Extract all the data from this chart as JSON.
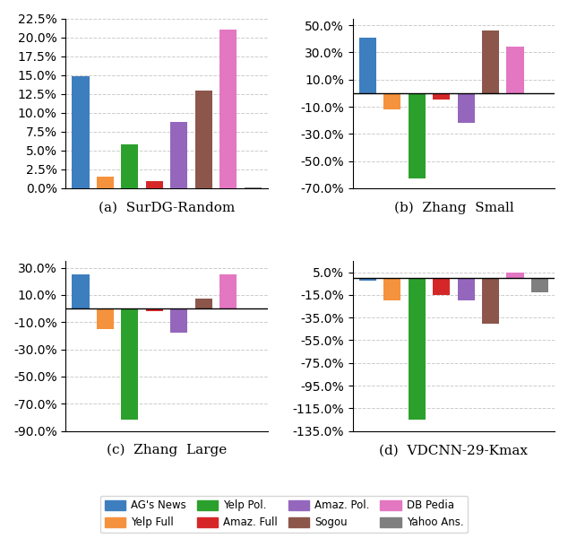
{
  "subplot_titles": [
    "(a)  SurDG-Random",
    "(b)  Zhang  Small",
    "(c)  Zhang  Large",
    "(d)  VDCNN-29-Kmax"
  ],
  "categories": [
    "AG's News",
    "Yelp Full",
    "Yelp Pol.",
    "Amaz. Full",
    "Amaz. Pol.",
    "Sogou",
    "DB Pedia",
    "Yahoo Ans."
  ],
  "colors": [
    "#3d7ebf",
    "#f5923e",
    "#2ca02c",
    "#d62728",
    "#9467bd",
    "#8c564b",
    "#e377c2",
    "#7f7f7f"
  ],
  "data": {
    "a": [
      14.8,
      1.5,
      5.8,
      0.9,
      8.8,
      13.0,
      21.0,
      0.1
    ],
    "b": [
      40.5,
      -12.0,
      -63.0,
      -5.0,
      -22.0,
      46.0,
      34.0,
      null
    ],
    "c": [
      25.0,
      -15.0,
      -82.0,
      -2.0,
      -18.0,
      7.0,
      25.0,
      null
    ],
    "d": [
      -2.0,
      -20.0,
      -125.0,
      -15.0,
      -20.0,
      -40.0,
      5.0,
      -13.0
    ]
  },
  "ylims": {
    "a": [
      0.0,
      22.5
    ],
    "b": [
      -70.0,
      55.0
    ],
    "c": [
      -90.0,
      35.0
    ],
    "d": [
      -135.0,
      15.0
    ]
  },
  "ytick_step": {
    "a": 2.5,
    "b": 20.0,
    "c": 20.0,
    "d": 20.0
  },
  "legend_labels": [
    "AG's News",
    "Yelp Full",
    "Yelp Pol.",
    "Amaz. Full",
    "Amaz. Pol.",
    "Sogou",
    "DB Pedia",
    "Yahoo Ans."
  ],
  "legend_ncol": 4,
  "background_color": "#ffffff",
  "grid_color": "#cccccc"
}
